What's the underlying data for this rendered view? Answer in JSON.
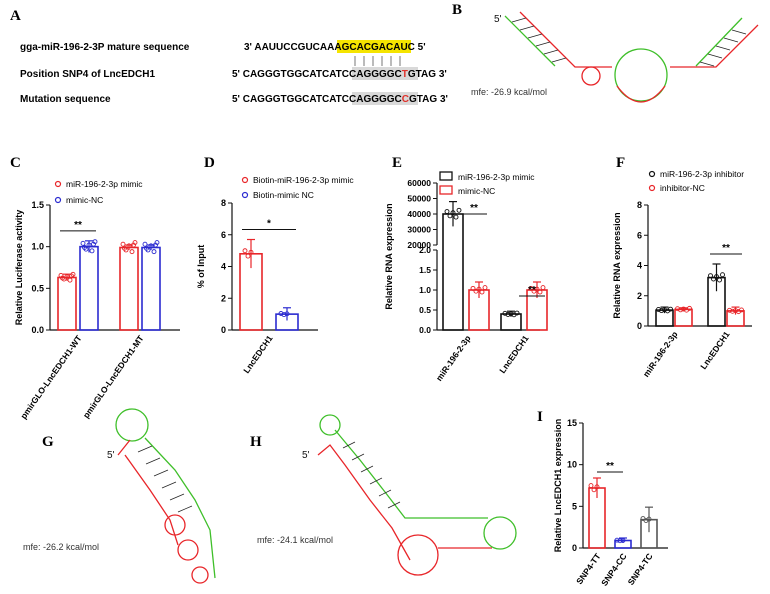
{
  "panels": {
    "A": {
      "letter": "A",
      "rows": [
        {
          "label": "gga-miR-196-2-3P mature sequence",
          "pre": "3' AAUUCCGUCAAAGCA",
          "highlight": "CGACAUC",
          "post": " 5'"
        },
        {
          "label": "Position SNP4 of LncEDCH1",
          "pre": "5' CAGGGTGGCATCATCCAGGG",
          "box_a": "GC",
          "box_mut": "T",
          "box_b": "GTAG",
          "post": " 3'"
        },
        {
          "label": "Mutation sequence",
          "pre": "5' CAGGGTGGCATCATCCAGGG",
          "box_a": "GC",
          "box_mut": "C",
          "box_b": "GTAG",
          "post": " 3'"
        }
      ],
      "highlight_color": "#f5e400",
      "mut_color": "#e0302a"
    },
    "B": {
      "letter": "B",
      "five_prime": "5'",
      "mfe": "mfe: -26.9 kcal/mol"
    },
    "G": {
      "letter": "G",
      "five_prime": "5'",
      "mfe": "mfe: -26.2 kcal/mol"
    },
    "H": {
      "letter": "H",
      "five_prime": "5'",
      "mfe": "mfe: -24.1 kcal/mol"
    },
    "C": {
      "letter": "C"
    },
    "D": {
      "letter": "D"
    },
    "E": {
      "letter": "E"
    },
    "F": {
      "letter": "F"
    },
    "I": {
      "letter": "I"
    }
  },
  "colors": {
    "red": "#e8262a",
    "blue": "#2b2bd0",
    "black": "#111111",
    "gray": "#555555",
    "green": "#3fbf2a"
  },
  "chart_data": [
    {
      "panel": "C",
      "type": "bar",
      "ylabel": "Relative Luciferase activity",
      "ylim": [
        0,
        1.5
      ],
      "yticks": [
        0,
        0.5,
        1.0,
        1.5
      ],
      "categories": [
        "pmirGLO-LncEDCH1-WT",
        "pmirGLO-LncEDCH1-MT"
      ],
      "series": [
        {
          "name": "miR-196-2-3p mimic",
          "color": "red",
          "values": [
            0.63,
            0.99
          ],
          "err": [
            0.04,
            0.03
          ]
        },
        {
          "name": "mimic-NC",
          "color": "blue",
          "values": [
            1.0,
            0.99
          ],
          "err": [
            0.07,
            0.03
          ]
        }
      ],
      "significance": [
        {
          "label": "**",
          "category": 0
        }
      ]
    },
    {
      "panel": "D",
      "type": "bar",
      "ylabel": "% of Input",
      "ylim": [
        0,
        8
      ],
      "yticks": [
        0,
        2,
        4,
        6,
        8
      ],
      "categories": [
        "LncEDCH1"
      ],
      "series": [
        {
          "name": "Biotin-miR-196-2-3p mimic",
          "color": "red",
          "values": [
            4.8
          ],
          "err": [
            0.9
          ]
        },
        {
          "name": "Biotin-mimic NC",
          "color": "blue",
          "values": [
            1.0
          ],
          "err": [
            0.4
          ]
        }
      ],
      "significance": [
        {
          "label": "*",
          "category": 0
        }
      ]
    },
    {
      "panel": "E",
      "type": "bar",
      "broken_axis": true,
      "ylabel": "Relative RNA expression",
      "yticks_upper": [
        20000,
        30000,
        40000,
        50000,
        60000
      ],
      "yticks_lower": [
        0,
        0.5,
        1.0,
        1.5,
        2.0
      ],
      "categories": [
        "miR-196-2-3p",
        "LncEDCH1"
      ],
      "series": [
        {
          "name": "miR-196-2-3p mimic",
          "color": "black",
          "values": [
            40000,
            0.4
          ],
          "err": [
            8000,
            0.07
          ]
        },
        {
          "name": "mimic-NC",
          "color": "red",
          "values": [
            1.0,
            1.0
          ],
          "err": [
            0.2,
            0.2
          ]
        }
      ],
      "significance": [
        {
          "label": "**",
          "category": 0
        },
        {
          "label": "**",
          "category": 1
        }
      ]
    },
    {
      "panel": "F",
      "type": "bar",
      "ylabel": "Relative RNA expression",
      "ylim": [
        0,
        8
      ],
      "yticks": [
        0,
        2,
        4,
        6,
        8
      ],
      "categories": [
        "miR-196-2-3p",
        "LncEDCH1"
      ],
      "series": [
        {
          "name": "miR-196-2-3p inhibitor",
          "color": "black",
          "values": [
            1.05,
            3.2
          ],
          "err": [
            0.2,
            0.9
          ]
        },
        {
          "name": "inhibitor-NC",
          "color": "red",
          "values": [
            1.1,
            1.0
          ],
          "err": [
            0.1,
            0.25
          ]
        }
      ],
      "significance": [
        {
          "label": "**",
          "category": 1
        }
      ]
    },
    {
      "panel": "I",
      "type": "bar",
      "ylabel": "Relative LncEDCH1 expression",
      "ylim": [
        0,
        15
      ],
      "yticks": [
        0,
        5,
        10,
        15
      ],
      "categories": [
        "SNP4-TT",
        "SNP4-CC",
        "SNP4-TC"
      ],
      "series": [
        {
          "name": "",
          "colors": [
            "red",
            "blue",
            "gray"
          ],
          "values": [
            7.2,
            0.9,
            3.4
          ],
          "err": [
            1.2,
            0.3,
            1.5
          ]
        }
      ],
      "significance": [
        {
          "label": "**",
          "between": [
            0,
            1
          ]
        }
      ]
    }
  ]
}
